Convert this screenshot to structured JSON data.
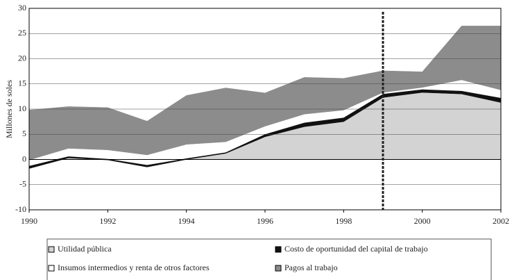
{
  "chart_data": {
    "type": "stacked_area",
    "y_label": "Millones de soles",
    "x": [
      1990,
      1991,
      1992,
      1993,
      1994,
      1995,
      1996,
      1997,
      1998,
      1999,
      2000,
      2001,
      2002
    ],
    "series": [
      {
        "name": "Utilidad pública",
        "color": "#d3d3d3",
        "values": [
          -1.8,
          0.3,
          -0.1,
          -1.5,
          0,
          1.2,
          4.5,
          6.5,
          7.5,
          12.3,
          13.3,
          13,
          11.3
        ]
      },
      {
        "name": "Costo de oportunidad del capital de trabajo",
        "color": "#111111",
        "values": [
          0.5,
          0.3,
          0.2,
          0.4,
          0.2,
          0.2,
          0.5,
          0.8,
          0.8,
          0.7,
          0.6,
          0.6,
          0.9
        ]
      },
      {
        "name": "Insumos intermedios y renta de otros factores",
        "color": "#ffffff",
        "values": [
          1.2,
          1.6,
          1.8,
          2.0,
          2.8,
          2.1,
          1.6,
          1.7,
          1.5,
          0.3,
          0.4,
          2.2,
          1.6
        ]
      },
      {
        "name": "Pagos al trabajo",
        "color": "#8c8c8c",
        "values": [
          9.9,
          8.3,
          8.4,
          6.7,
          9.7,
          10.7,
          6.6,
          7.3,
          6.3,
          4.3,
          3.1,
          10.7,
          12.7
        ]
      }
    ],
    "xlim": [
      1990,
      2002
    ],
    "xticks": [
      1990,
      1992,
      1994,
      1996,
      1998,
      2000,
      2002
    ],
    "ylim": [
      -10,
      30
    ],
    "yticks": [
      -10,
      -5,
      0,
      5,
      10,
      15,
      20,
      25,
      30
    ],
    "grid": true,
    "vline_x": 1999
  }
}
